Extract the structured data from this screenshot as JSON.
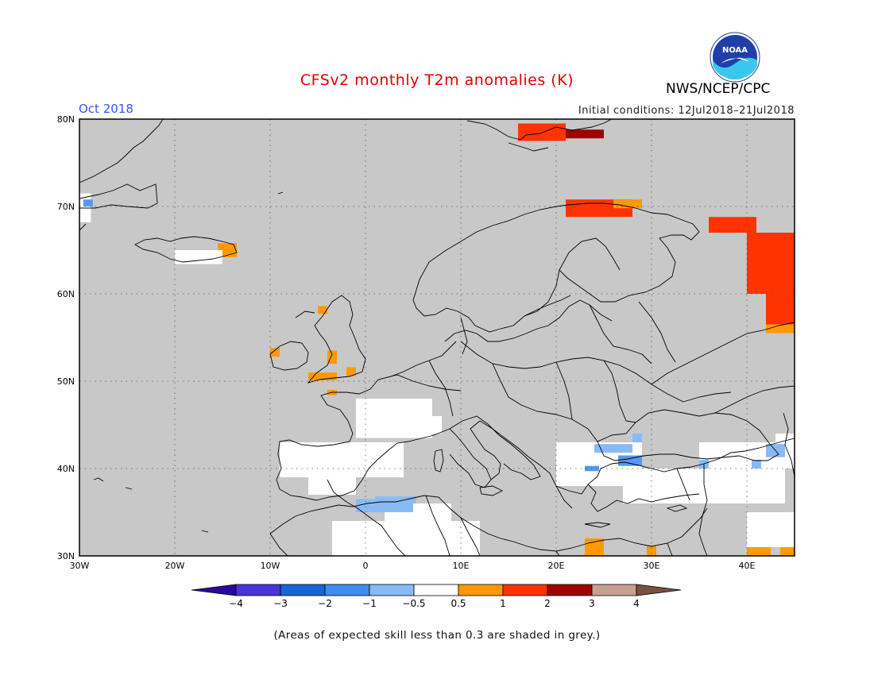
{
  "header": {
    "title": "CFSv2 monthly T2m anomalies (K)",
    "month": "Oct 2018",
    "initial_conditions": "Initial conditions: 12Jul2018–21Jul2018",
    "agency": "NWS/NCEP/CPC",
    "logo_text": "NOAA"
  },
  "map": {
    "lat_labels": [
      "80N",
      "70N",
      "60N",
      "50N",
      "40N",
      "30N"
    ],
    "lon_labels": [
      "30W",
      "20W",
      "10W",
      "0",
      "10E",
      "20E",
      "30E",
      "40E"
    ],
    "lat_range": [
      30,
      80
    ],
    "lon_range": [
      -30,
      45
    ],
    "background": "#c8c8c8",
    "anomalies": [
      {
        "name": "svalbard-warm",
        "color": "#ff3300",
        "lon": [
          16,
          21
        ],
        "lat": [
          77.5,
          79.5
        ]
      },
      {
        "name": "svalbard-hot",
        "color": "#a00000",
        "lon": [
          21,
          25
        ],
        "lat": [
          77.8,
          78.8
        ]
      },
      {
        "name": "north-cape-warm",
        "color": "#ff3300",
        "lon": [
          21,
          28
        ],
        "lat": [
          68.8,
          70.8
        ]
      },
      {
        "name": "north-cape-orange",
        "color": "#ff9900",
        "lon": [
          26,
          29
        ],
        "lat": [
          69.8,
          70.8
        ]
      },
      {
        "name": "barents-warm",
        "color": "#ff3300",
        "lon": [
          36,
          41
        ],
        "lat": [
          67,
          68.8
        ]
      },
      {
        "name": "russia-warm-1",
        "color": "#ff3300",
        "lon": [
          40,
          45
        ],
        "lat": [
          60,
          67
        ]
      },
      {
        "name": "russia-warm-2",
        "color": "#ff3300",
        "lon": [
          42,
          45
        ],
        "lat": [
          56.5,
          60
        ]
      },
      {
        "name": "russia-orange",
        "color": "#ff9900",
        "lon": [
          42,
          45
        ],
        "lat": [
          55.5,
          56.5
        ]
      },
      {
        "name": "iceland-orange",
        "color": "#ff9900",
        "lon": [
          -15.5,
          -13.5
        ],
        "lat": [
          64.2,
          65.8
        ]
      },
      {
        "name": "ireland-orange",
        "color": "#ff9900",
        "lon": [
          -10,
          -9
        ],
        "lat": [
          52.8,
          53.8
        ]
      },
      {
        "name": "uk-orange-1",
        "color": "#ff9900",
        "lon": [
          -4,
          -3
        ],
        "lat": [
          52,
          53.5
        ]
      },
      {
        "name": "uk-orange-2",
        "color": "#ff9900",
        "lon": [
          -6,
          -3
        ],
        "lat": [
          50.1,
          51
        ]
      },
      {
        "name": "uk-orange-3",
        "color": "#ff9900",
        "lon": [
          -2,
          -1
        ],
        "lat": [
          50.6,
          51.6
        ]
      },
      {
        "name": "scotland-orange",
        "color": "#ff9900",
        "lon": [
          -5,
          -4
        ],
        "lat": [
          57.7,
          58.6
        ]
      },
      {
        "name": "france-orange",
        "color": "#ff9900",
        "lon": [
          -4,
          -3
        ],
        "lat": [
          48.4,
          49
        ]
      },
      {
        "name": "crete-orange",
        "color": "#ff9900",
        "lon": [
          23,
          25
        ],
        "lat": [
          30,
          32
        ]
      },
      {
        "name": "egypt-orange",
        "color": "#ff9900",
        "lon": [
          29.5,
          30.5
        ],
        "lat": [
          30,
          31.2
        ]
      },
      {
        "name": "iraq-orange",
        "color": "#ff9900",
        "lon": [
          40,
          42.5
        ],
        "lat": [
          30,
          31
        ]
      },
      {
        "name": "gulf-orange",
        "color": "#ff9900",
        "lon": [
          43.5,
          45
        ],
        "lat": [
          30,
          34.5
        ]
      },
      {
        "name": "iceland-neutral",
        "color": "#ffffff",
        "lon": [
          -20,
          -15
        ],
        "lat": [
          63.4,
          65
        ]
      },
      {
        "name": "greenland-neutral",
        "color": "#ffffff",
        "lon": [
          -30,
          -28.8
        ],
        "lat": [
          68.2,
          71.5
        ]
      },
      {
        "name": "greenland-cool",
        "color": "#5599ee",
        "lon": [
          -29.6,
          -28.6
        ],
        "lat": [
          70,
          70.8
        ]
      },
      {
        "name": "france-neutral-1",
        "color": "#ffffff",
        "lon": [
          -1,
          7
        ],
        "lat": [
          43.5,
          48
        ]
      },
      {
        "name": "france-neutral-2",
        "color": "#ffffff",
        "lon": [
          3,
          8
        ],
        "lat": [
          44,
          46
        ]
      },
      {
        "name": "spain-neutral-1",
        "color": "#ffffff",
        "lon": [
          -9,
          4
        ],
        "lat": [
          39,
          43
        ]
      },
      {
        "name": "spain-neutral-2",
        "color": "#ffffff",
        "lon": [
          -6,
          -1
        ],
        "lat": [
          37,
          39
        ]
      },
      {
        "name": "africa-neutral-1",
        "color": "#ffffff",
        "lon": [
          -3.5,
          12
        ],
        "lat": [
          30,
          34
        ]
      },
      {
        "name": "africa-neutral-2",
        "color": "#ffffff",
        "lon": [
          2,
          9
        ],
        "lat": [
          33,
          36
        ]
      },
      {
        "name": "balkans-neutral",
        "color": "#ffffff",
        "lon": [
          20,
          29
        ],
        "lat": [
          38,
          43
        ]
      },
      {
        "name": "turkey-neutral-1",
        "color": "#ffffff",
        "lon": [
          27,
          44
        ],
        "lat": [
          36,
          40
        ]
      },
      {
        "name": "turkey-neutral-2",
        "color": "#ffffff",
        "lon": [
          35,
          45
        ],
        "lat": [
          40,
          43
        ]
      },
      {
        "name": "levant-neutral",
        "color": "#ffffff",
        "lon": [
          40,
          45
        ],
        "lat": [
          31,
          35
        ]
      },
      {
        "name": "caucasus-neutral",
        "color": "#ffffff",
        "lon": [
          43,
          45
        ],
        "lat": [
          41,
          44
        ]
      },
      {
        "name": "algeria-cool",
        "color": "#88bbf5",
        "lon": [
          -1,
          5
        ],
        "lat": [
          35,
          36.5
        ]
      },
      {
        "name": "algeria-cool-2",
        "color": "#88bbf5",
        "lon": [
          1,
          5.3
        ],
        "lat": [
          36,
          36.8
        ]
      },
      {
        "name": "blacksea-cool",
        "color": "#88bbf5",
        "lon": [
          24,
          28
        ],
        "lat": [
          41.8,
          42.8
        ]
      },
      {
        "name": "bulgaria-cool",
        "color": "#88bbf5",
        "lon": [
          28,
          29
        ],
        "lat": [
          43,
          44
        ]
      },
      {
        "name": "marmara-cool",
        "color": "#5599ee",
        "lon": [
          26.5,
          29
        ],
        "lat": [
          40.3,
          41.5
        ]
      },
      {
        "name": "aegean-cool",
        "color": "#5599ee",
        "lon": [
          23,
          24.5
        ],
        "lat": [
          39.7,
          40.3
        ]
      },
      {
        "name": "anatolia-cool",
        "color": "#88bbf5",
        "lon": [
          35,
          36
        ],
        "lat": [
          40,
          41
        ]
      },
      {
        "name": "georgia-cool",
        "color": "#88bbf5",
        "lon": [
          42,
          44
        ],
        "lat": [
          41.3,
          42.8
        ]
      },
      {
        "name": "armenia-cool",
        "color": "#88bbf5",
        "lon": [
          40.5,
          41.5
        ],
        "lat": [
          40,
          41
        ]
      }
    ]
  },
  "legend": {
    "tick_labels": [
      "−4",
      "−3",
      "−2",
      "−1",
      "−0.5",
      "0.5",
      "1",
      "2",
      "3",
      "4"
    ],
    "colors": [
      "#2a08a0",
      "#4a33dd",
      "#1566d6",
      "#3d8df0",
      "#88bbf5",
      "#ffffff",
      "#ff9900",
      "#ff3300",
      "#a00000",
      "#c8a090",
      "#7a5040"
    ]
  },
  "footnote": "(Areas of expected skill less than 0.3 are shaded in grey.)"
}
